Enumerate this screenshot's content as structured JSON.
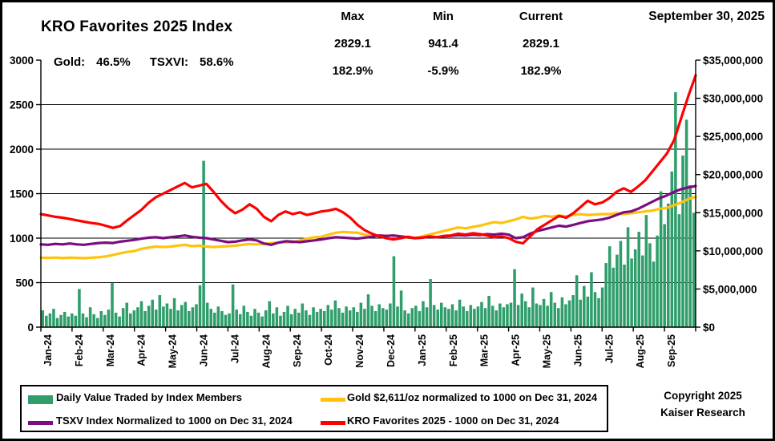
{
  "header": {
    "title": "KRO Favorites 2025 Index",
    "gold_label": "Gold:",
    "gold_value": "46.5%",
    "tsxvi_label": "TSXVI:",
    "tsxvi_value": "58.6%",
    "date": "September 30, 2025",
    "stats": {
      "columns": [
        "Max",
        "Min",
        "Current"
      ],
      "values": [
        "2829.1",
        "941.4",
        "2829.1"
      ],
      "percents": [
        "182.9%",
        "-5.9%",
        "182.9%"
      ]
    }
  },
  "legend": {
    "items": [
      {
        "label": "Daily Value Traded by Index Members",
        "color": "#2f9e6b",
        "type": "swatch"
      },
      {
        "label": "Gold $2,611/oz normalized to 1000 on Dec 31, 2024",
        "color": "#ffc20e",
        "type": "line"
      },
      {
        "label": "TSXV Index Normalized to 1000 on Dec 31, 2024",
        "color": "#7c0d80",
        "type": "line"
      },
      {
        "label": "KRO Favorites 2025 - 1000 on Dec 31, 2024",
        "color": "#fe0000",
        "type": "line"
      }
    ]
  },
  "footer": {
    "copyright_line1": "Copyright 2025",
    "copyright_line2": "Kaiser Research"
  },
  "chart_data": {
    "type": "combo (bar + line)",
    "title": "KRO Favorites 2025 Index",
    "grid": "horizontal only",
    "left_axis": {
      "min": 0,
      "max": 3000,
      "step": 500,
      "tick_labels": [
        "0",
        "500",
        "1000",
        "1500",
        "2000",
        "2500",
        "3000"
      ]
    },
    "right_axis": {
      "min": 0,
      "max_millions": 35,
      "step_millions": 5,
      "tick_labels": [
        "$0",
        "$5,000,000",
        "$10,000,000",
        "$15,000,000",
        "$20,000,000",
        "$25,000,000",
        "$30,000,000",
        "$35,000,000"
      ]
    },
    "x_labels": [
      "Jan-24",
      "Feb-24",
      "Mar-24",
      "Apr-24",
      "May-24",
      "Jun-24",
      "Jul-24",
      "Aug-24",
      "Sep-24",
      "Oct-24",
      "Nov-24",
      "Dec-24",
      "Jan-25",
      "Feb-25",
      "Mar-25",
      "Apr-25",
      "May-25",
      "Jun-25",
      "Jul-25",
      "Aug-25",
      "Sep-25"
    ],
    "bars": {
      "name": "Daily Value Traded by Index Members",
      "axis": "right",
      "unit": "USD millions (approx, daily)",
      "color": "#2f9e6b",
      "values_millions": [
        2.2,
        1.5,
        1.8,
        2.4,
        1.2,
        1.6,
        2.0,
        1.4,
        1.8,
        1.5,
        5.0,
        1.8,
        1.3,
        2.6,
        1.7,
        1.2,
        2.1,
        1.6,
        2.3,
        5.8,
        1.9,
        1.4,
        2.5,
        3.2,
        1.8,
        2.2,
        2.6,
        3.4,
        2.1,
        2.8,
        3.6,
        2.3,
        4.2,
        2.7,
        3.1,
        2.4,
        3.8,
        2.2,
        2.9,
        3.3,
        2.1,
        2.6,
        3.0,
        5.5,
        21.8,
        3.2,
        2.4,
        1.9,
        2.7,
        2.1,
        1.6,
        1.8,
        5.6,
        2.3,
        1.7,
        2.8,
        2.0,
        1.5,
        2.4,
        1.9,
        1.4,
        2.2,
        3.4,
        1.8,
        2.6,
        1.5,
        2.0,
        2.8,
        1.7,
        2.4,
        1.9,
        3.1,
        2.2,
        1.6,
        2.6,
        2.0,
        2.4,
        2.1,
        2.9,
        2.3,
        3.5,
        2.5,
        1.9,
        2.7,
        2.2,
        2.6,
        2.0,
        3.2,
        2.4,
        4.3,
        2.8,
        2.1,
        3.0,
        2.5,
        2.3,
        3.1,
        9.3,
        2.7,
        4.8,
        2.2,
        1.8,
        2.5,
        2.8,
        2.1,
        3.4,
        2.6,
        6.3,
        2.9,
        2.3,
        3.2,
        2.6,
        2.4,
        3.0,
        2.2,
        3.6,
        2.7,
        2.1,
        2.9,
        2.4,
        2.7,
        3.3,
        2.5,
        4.1,
        2.8,
        2.2,
        3.1,
        2.6,
        3.0,
        3.2,
        7.6,
        2.9,
        4.4,
        3.4,
        2.6,
        5.2,
        3.1,
        2.9,
        3.7,
        2.8,
        4.6,
        3.2,
        2.5,
        3.9,
        3.0,
        3.5,
        4.2,
        6.8,
        3.6,
        5.4,
        4.0,
        7.2,
        4.6,
        3.8,
        5.2,
        8.4,
        10.6,
        7.8,
        9.5,
        11.3,
        8.2,
        13.1,
        9.0,
        10.2,
        12.5,
        9.4,
        14.7,
        11.0,
        8.6,
        12.0,
        17.8,
        13.5,
        16.2,
        20.4,
        30.8,
        14.8,
        22.5,
        27.2,
        18.6,
        15.0
      ]
    },
    "series": [
      {
        "name": "Gold $2,611/oz normalized to 1000 on Dec 31, 2024",
        "axis": "left",
        "color": "#ffc20e",
        "values": [
          780,
          778,
          782,
          776,
          780,
          778,
          775,
          780,
          785,
          795,
          810,
          830,
          845,
          855,
          880,
          895,
          905,
          900,
          905,
          915,
          925,
          910,
          915,
          905,
          900,
          905,
          910,
          915,
          925,
          935,
          930,
          935,
          945,
          950,
          955,
          950,
          975,
          995,
          1010,
          1015,
          1040,
          1060,
          1070,
          1065,
          1060,
          1040,
          1020,
          1030,
          1025,
          1030,
          1020,
          1005,
          1000,
          1020,
          1040,
          1060,
          1080,
          1100,
          1120,
          1110,
          1125,
          1140,
          1160,
          1180,
          1170,
          1190,
          1210,
          1240,
          1220,
          1230,
          1250,
          1240,
          1255,
          1245,
          1260,
          1270,
          1260,
          1265,
          1270,
          1270,
          1280,
          1270,
          1280,
          1290,
          1300,
          1310,
          1330,
          1340,
          1370,
          1400,
          1440,
          1465
        ]
      },
      {
        "name": "TSXV Index Normalized to 1000 on Dec 31, 2024",
        "axis": "left",
        "color": "#7c0d80",
        "values": [
          930,
          925,
          935,
          930,
          940,
          930,
          925,
          935,
          945,
          950,
          945,
          960,
          970,
          980,
          995,
          1005,
          1010,
          1000,
          1010,
          1020,
          1030,
          1015,
          1005,
          1000,
          985,
          970,
          955,
          960,
          975,
          985,
          975,
          940,
          925,
          950,
          965,
          960,
          955,
          965,
          975,
          985,
          1000,
          1010,
          1005,
          1000,
          995,
          1005,
          1015,
          1030,
          1025,
          1030,
          1020,
          1010,
          1000,
          1005,
          1015,
          1010,
          1020,
          1025,
          1035,
          1030,
          1040,
          1035,
          1045,
          1040,
          1050,
          1040,
          1000,
          1010,
          1050,
          1080,
          1100,
          1120,
          1140,
          1130,
          1150,
          1170,
          1190,
          1200,
          1210,
          1230,
          1260,
          1290,
          1300,
          1330,
          1370,
          1410,
          1450,
          1480,
          1520,
          1550,
          1570,
          1586
        ]
      },
      {
        "name": "KRO Favorites 2025 - 1000 on Dec 31, 2024",
        "axis": "left",
        "color": "#fe0000",
        "values": [
          1270,
          1255,
          1240,
          1230,
          1215,
          1200,
          1185,
          1170,
          1160,
          1140,
          1115,
          1135,
          1200,
          1260,
          1320,
          1400,
          1460,
          1500,
          1540,
          1580,
          1620,
          1570,
          1590,
          1610,
          1520,
          1420,
          1340,
          1280,
          1320,
          1380,
          1330,
          1240,
          1190,
          1260,
          1300,
          1270,
          1290,
          1260,
          1280,
          1300,
          1310,
          1330,
          1290,
          1230,
          1150,
          1090,
          1050,
          1020,
          1000,
          985,
          1000,
          1015,
          1000,
          1005,
          1020,
          1010,
          1025,
          1030,
          1050,
          1040,
          1055,
          1045,
          1030,
          1010,
          1020,
          1000,
          960,
          941,
          1020,
          1100,
          1150,
          1200,
          1250,
          1230,
          1280,
          1350,
          1420,
          1380,
          1400,
          1450,
          1520,
          1560,
          1520,
          1580,
          1650,
          1750,
          1850,
          1950,
          2100,
          2350,
          2600,
          2829
        ]
      }
    ],
    "annotations": {
      "max_value": 2829.1,
      "min_value": 941.4,
      "current_value": 2829.1,
      "max_pct": "182.9%",
      "min_pct": "-5.9%",
      "current_pct": "182.9%"
    }
  }
}
